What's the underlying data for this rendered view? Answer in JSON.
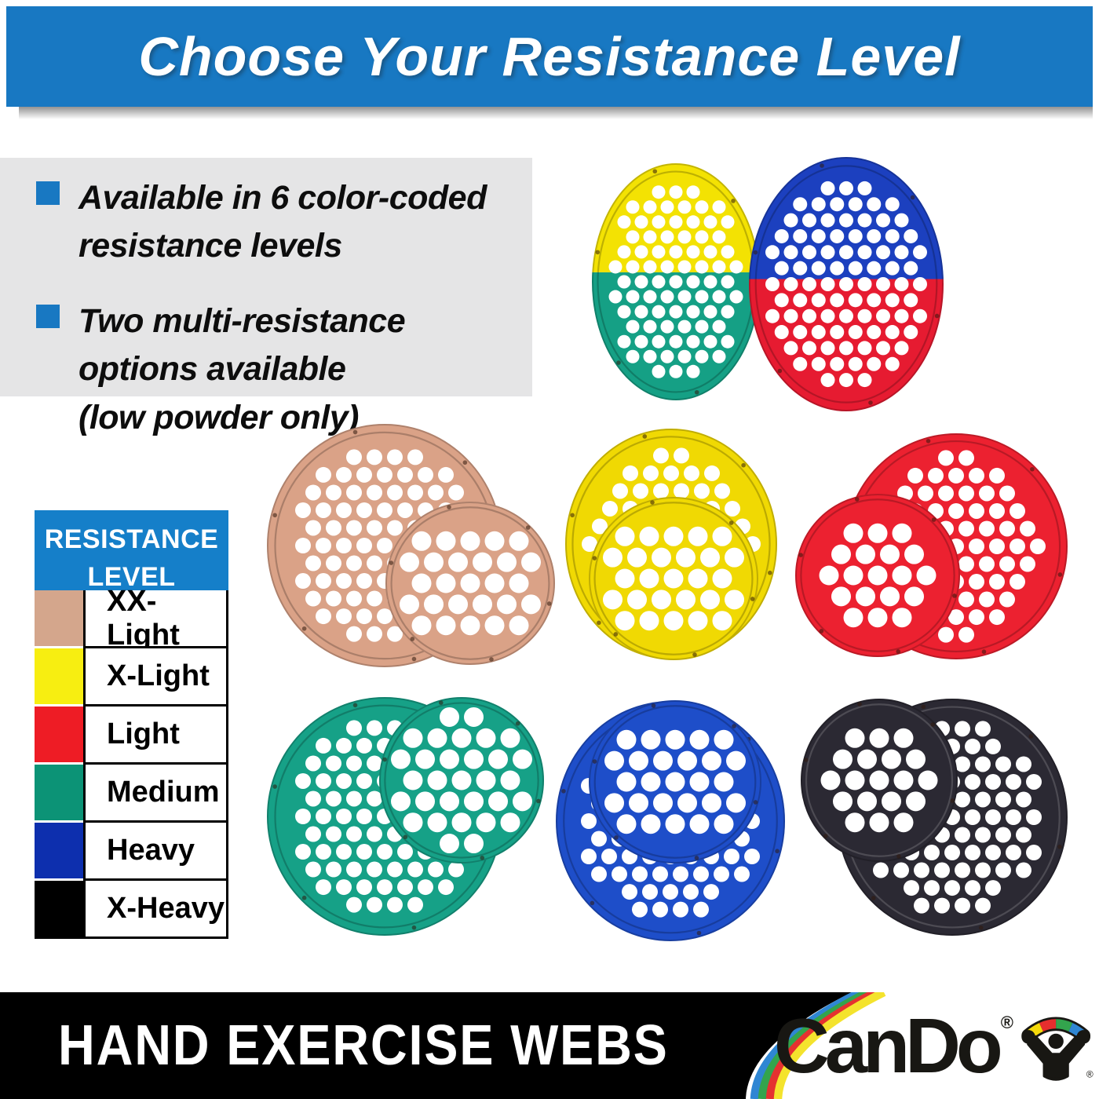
{
  "banner": {
    "title": "Choose Your Resistance Level",
    "bg": "#1878c2"
  },
  "info": {
    "bullet_color": "#1878c2",
    "items": [
      {
        "lines": [
          "Available in 6 color-coded",
          "resistance levels"
        ]
      },
      {
        "lines": [
          "Two multi-resistance",
          "options available",
          "(low powder only)"
        ]
      }
    ]
  },
  "legend": {
    "header_lines": [
      "RESISTANCE",
      "LEVEL"
    ],
    "header_bg": "#157fc9",
    "rows": [
      {
        "label": "XX-Light",
        "color": "#d4a68c"
      },
      {
        "label": "X-Light",
        "color": "#f7ee11"
      },
      {
        "label": "Light",
        "color": "#ee1c25"
      },
      {
        "label": "Medium",
        "color": "#0c9376"
      },
      {
        "label": "Heavy",
        "color": "#0d2fae"
      },
      {
        "label": "X-Heavy",
        "color": "#000000"
      }
    ]
  },
  "webs": [
    {
      "id": "multi-yellow-green",
      "colors": {
        "top": "#f3e203",
        "bottom": "#15a085"
      }
    },
    {
      "id": "multi-blue-red",
      "colors": {
        "top": "#1c40bf",
        "bottom": "#e61b31"
      }
    },
    {
      "id": "xx-light",
      "color": "#daa287"
    },
    {
      "id": "x-light",
      "color": "#f0d903"
    },
    {
      "id": "light",
      "color": "#ec2130"
    },
    {
      "id": "medium",
      "color": "#16a187"
    },
    {
      "id": "heavy",
      "color": "#1e4ec9"
    },
    {
      "id": "x-heavy",
      "color": "#2b2933"
    }
  ],
  "footer": {
    "product_name": "HAND EXERCISE WEBS",
    "brand": "CanDo",
    "registered_mark": "®",
    "bg": "#000000",
    "stripe_colors": [
      "#2f86d3",
      "#33a44d",
      "#e53130",
      "#f4e32d"
    ],
    "figure_band_colors": [
      "#f4d90a",
      "#e62e2e",
      "#33a44d",
      "#2f86d3"
    ]
  }
}
